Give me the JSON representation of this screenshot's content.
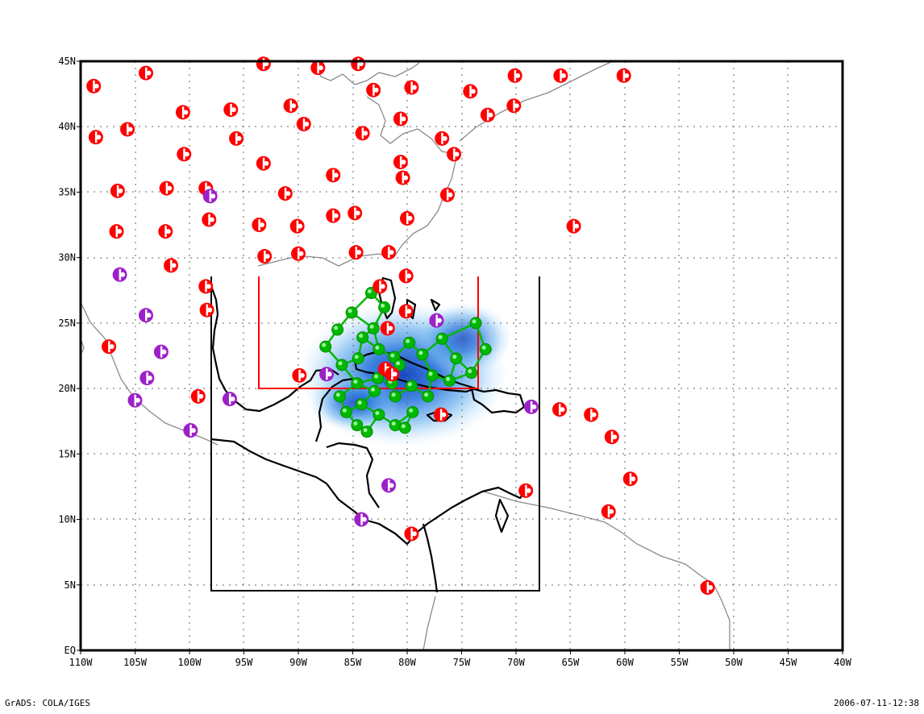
{
  "map": {
    "lon_range": [
      -110,
      -40
    ],
    "lat_range": [
      0,
      45
    ],
    "x_tick_labels": [
      "110W",
      "105W",
      "100W",
      "95W",
      "90W",
      "85W",
      "80W",
      "75W",
      "70W",
      "65W",
      "60W",
      "55W",
      "50W",
      "45W",
      "40W"
    ],
    "y_tick_labels": [
      "EQ",
      "5N",
      "10N",
      "15N",
      "20N",
      "25N",
      "30N",
      "35N",
      "40N",
      "45N"
    ],
    "grid": "dotted",
    "colors": {
      "station_red": "#ff0000",
      "station_purple": "#9d20c8",
      "network_green": "#00b800",
      "coastline_gray": "#808080",
      "coastline_black": "#000000",
      "shading_blue": "#1e64d2"
    },
    "domain_box_black": {
      "lon": [
        -98.8,
        -68.2
      ],
      "lat": [
        4.5,
        28.5
      ]
    },
    "domain_lines_red": {
      "lon": [
        -93.5,
        -73.5
      ],
      "lat": [
        20.0,
        28.5
      ]
    },
    "stations_red": [
      [
        -108.8,
        43.1
      ],
      [
        -104,
        44.1
      ],
      [
        -93.2,
        44.8
      ],
      [
        -88.2,
        44.5
      ],
      [
        -84.5,
        44.8
      ],
      [
        -83.1,
        42.8
      ],
      [
        -79.6,
        43.0
      ],
      [
        -74.2,
        42.7
      ],
      [
        -70.1,
        43.9
      ],
      [
        -65.9,
        43.9
      ],
      [
        -60.1,
        43.9
      ],
      [
        -108.6,
        39.2
      ],
      [
        -105.7,
        39.8
      ],
      [
        -100.5,
        37.9
      ],
      [
        -100.6,
        41.1
      ],
      [
        -96.2,
        41.3
      ],
      [
        -95.7,
        39.1
      ],
      [
        -90.7,
        41.6
      ],
      [
        -89.5,
        40.2
      ],
      [
        -84.1,
        39.5
      ],
      [
        -80.6,
        40.6
      ],
      [
        -76.8,
        39.1
      ],
      [
        -72.6,
        40.9
      ],
      [
        -70.2,
        41.6
      ],
      [
        -75.7,
        37.9
      ],
      [
        -80.6,
        37.3
      ],
      [
        -80.4,
        36.1
      ],
      [
        -86.8,
        36.3
      ],
      [
        -93.2,
        37.2
      ],
      [
        -106.6,
        35.1
      ],
      [
        -102.1,
        35.3
      ],
      [
        -98.5,
        35.3
      ],
      [
        -91.2,
        34.9
      ],
      [
        -76.3,
        34.8
      ],
      [
        -106.7,
        32.0
      ],
      [
        -102.2,
        32.0
      ],
      [
        -98.2,
        32.9
      ],
      [
        -93.6,
        32.5
      ],
      [
        -90.1,
        32.4
      ],
      [
        -86.8,
        33.2
      ],
      [
        -84.8,
        33.4
      ],
      [
        -80.0,
        33.0
      ],
      [
        -64.7,
        32.4
      ],
      [
        -101.7,
        29.4
      ],
      [
        -93.1,
        30.1
      ],
      [
        -90.0,
        30.3
      ],
      [
        -84.7,
        30.4
      ],
      [
        -81.7,
        30.4
      ],
      [
        -80.1,
        28.6
      ],
      [
        -82.5,
        27.8
      ],
      [
        -98.5,
        27.8
      ],
      [
        -98.4,
        26.0
      ],
      [
        -80.1,
        25.9
      ],
      [
        -107.4,
        23.2
      ],
      [
        -99.2,
        19.4
      ],
      [
        -89.9,
        21.0
      ],
      [
        -81.8,
        24.6
      ],
      [
        -82.0,
        21.5
      ],
      [
        -81.4,
        21.1
      ],
      [
        -76.9,
        18.0
      ],
      [
        -66.0,
        18.4
      ],
      [
        -63.1,
        18.0
      ],
      [
        -61.2,
        16.3
      ],
      [
        -59.5,
        13.1
      ],
      [
        -61.5,
        10.6
      ],
      [
        -69.1,
        12.2
      ],
      [
        -79.6,
        8.9
      ],
      [
        -52.4,
        4.8
      ]
    ],
    "stations_purple": [
      [
        -98.1,
        34.7
      ],
      [
        -106.4,
        28.7
      ],
      [
        -104.0,
        25.6
      ],
      [
        -102.6,
        22.8
      ],
      [
        -103.9,
        20.8
      ],
      [
        -105.0,
        19.1
      ],
      [
        -99.9,
        16.8
      ],
      [
        -96.3,
        19.2
      ],
      [
        -87.4,
        21.1
      ],
      [
        -77.3,
        25.2
      ],
      [
        -68.6,
        18.6
      ],
      [
        -81.7,
        12.6
      ],
      [
        -84.2,
        10.0
      ]
    ],
    "network_green": [
      [
        -85.1,
        25.8
      ],
      [
        -83.3,
        27.3
      ],
      [
        -82.1,
        26.2
      ],
      [
        -86.4,
        24.5
      ],
      [
        -87.5,
        23.2
      ],
      [
        -84.1,
        23.9
      ],
      [
        -82.6,
        23.0
      ],
      [
        -81.2,
        22.4
      ],
      [
        -79.8,
        23.5
      ],
      [
        -78.6,
        22.6
      ],
      [
        -76.8,
        23.8
      ],
      [
        -75.5,
        22.3
      ],
      [
        -73.7,
        25.0
      ],
      [
        -72.8,
        23.0
      ],
      [
        -74.1,
        21.2
      ],
      [
        -76.1,
        20.6
      ],
      [
        -77.7,
        21.0
      ],
      [
        -79.6,
        20.2
      ],
      [
        -81.1,
        19.4
      ],
      [
        -83.0,
        19.8
      ],
      [
        -84.6,
        20.4
      ],
      [
        -86.2,
        19.4
      ],
      [
        -85.6,
        18.2
      ],
      [
        -84.2,
        18.8
      ],
      [
        -82.6,
        18.0
      ],
      [
        -81.1,
        17.2
      ],
      [
        -79.5,
        18.2
      ],
      [
        -78.1,
        19.4
      ],
      [
        -83.7,
        16.7
      ],
      [
        -80.2,
        17.0
      ],
      [
        -82.7,
        20.8
      ],
      [
        -80.7,
        21.8
      ],
      [
        -84.5,
        22.3
      ],
      [
        -86.0,
        21.8
      ],
      [
        -83.1,
        24.6
      ],
      [
        -81.4,
        20.4
      ],
      [
        -84.6,
        17.2
      ]
    ]
  },
  "footer": {
    "left": "GrADS: COLA/IGES",
    "right": "2006-07-11-12:38"
  }
}
